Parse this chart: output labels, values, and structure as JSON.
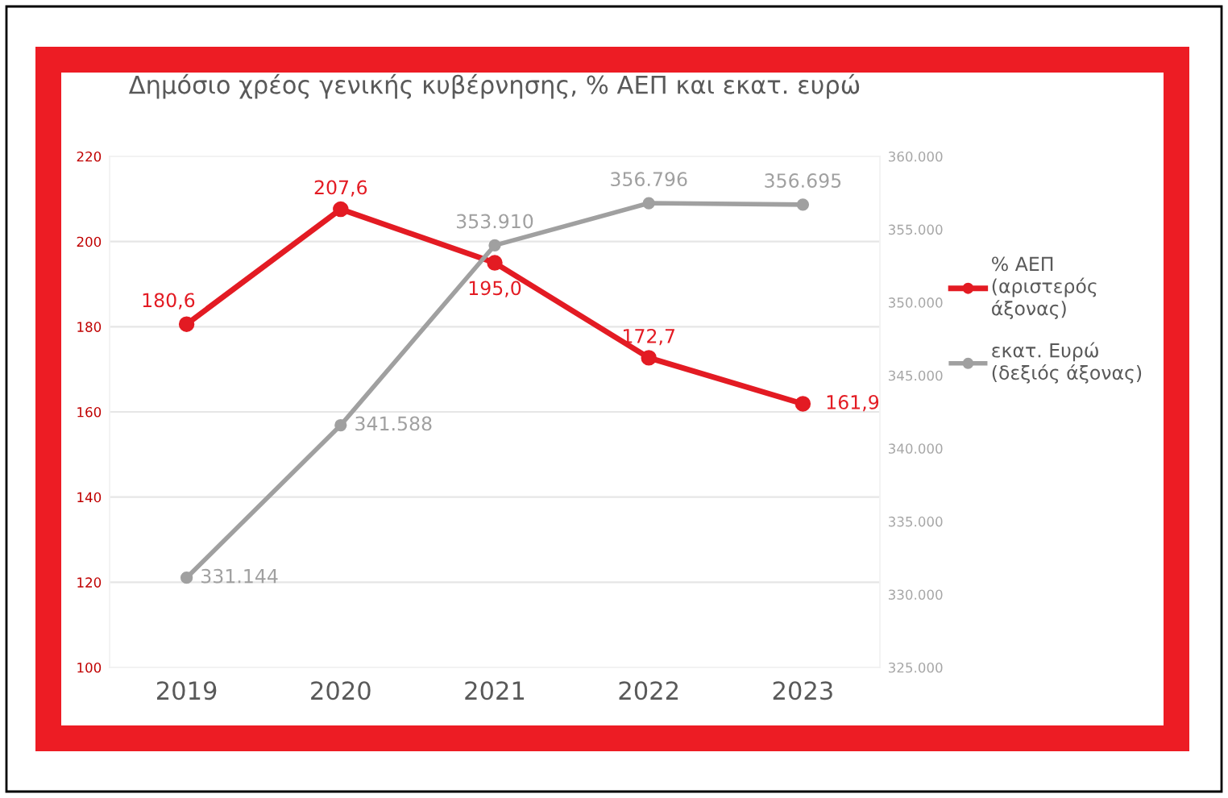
{
  "chart_data": {
    "type": "line",
    "title": "Δημόσιο χρέος γενικής κυβέρνησης, % ΑΕΠ και εκατ. ευρώ",
    "categories": [
      "2019",
      "2020",
      "2021",
      "2022",
      "2023"
    ],
    "series": [
      {
        "name": "% ΑΕΠ (αριστερός άξονας)",
        "color": "#e31b23",
        "values": [
          180.6,
          207.6,
          195.0,
          172.7,
          161.9
        ],
        "value_labels": [
          "180,6",
          "207,6",
          "195,0",
          "172,7",
          "161,9"
        ]
      },
      {
        "name": "εκατ. Ευρώ (δεξιός άξονας)",
        "color": "#a0a0a0",
        "axis": "y2",
        "values": [
          331144,
          341588,
          353910,
          356796,
          356695
        ],
        "value_labels": [
          "331.144",
          "341.588",
          "353.910",
          "356.796",
          "356.695"
        ]
      }
    ],
    "ylim": [
      100,
      220
    ],
    "yticks": [
      100,
      120,
      140,
      160,
      180,
      200,
      220
    ],
    "y2lim": [
      325000,
      360000
    ],
    "y2ticks": [
      {
        "value": 325000,
        "label": "325.000"
      },
      {
        "value": 330000,
        "label": "330.000"
      },
      {
        "value": 335000,
        "label": "335.000"
      },
      {
        "value": 340000,
        "label": "340.000"
      },
      {
        "value": 345000,
        "label": "345.000"
      },
      {
        "value": 350000,
        "label": "350.000"
      },
      {
        "value": 355000,
        "label": "355.000"
      },
      {
        "value": 360000,
        "label": "360.000"
      }
    ],
    "grid": "y",
    "legend": "right",
    "marker": "circle",
    "line_style": "solid"
  }
}
